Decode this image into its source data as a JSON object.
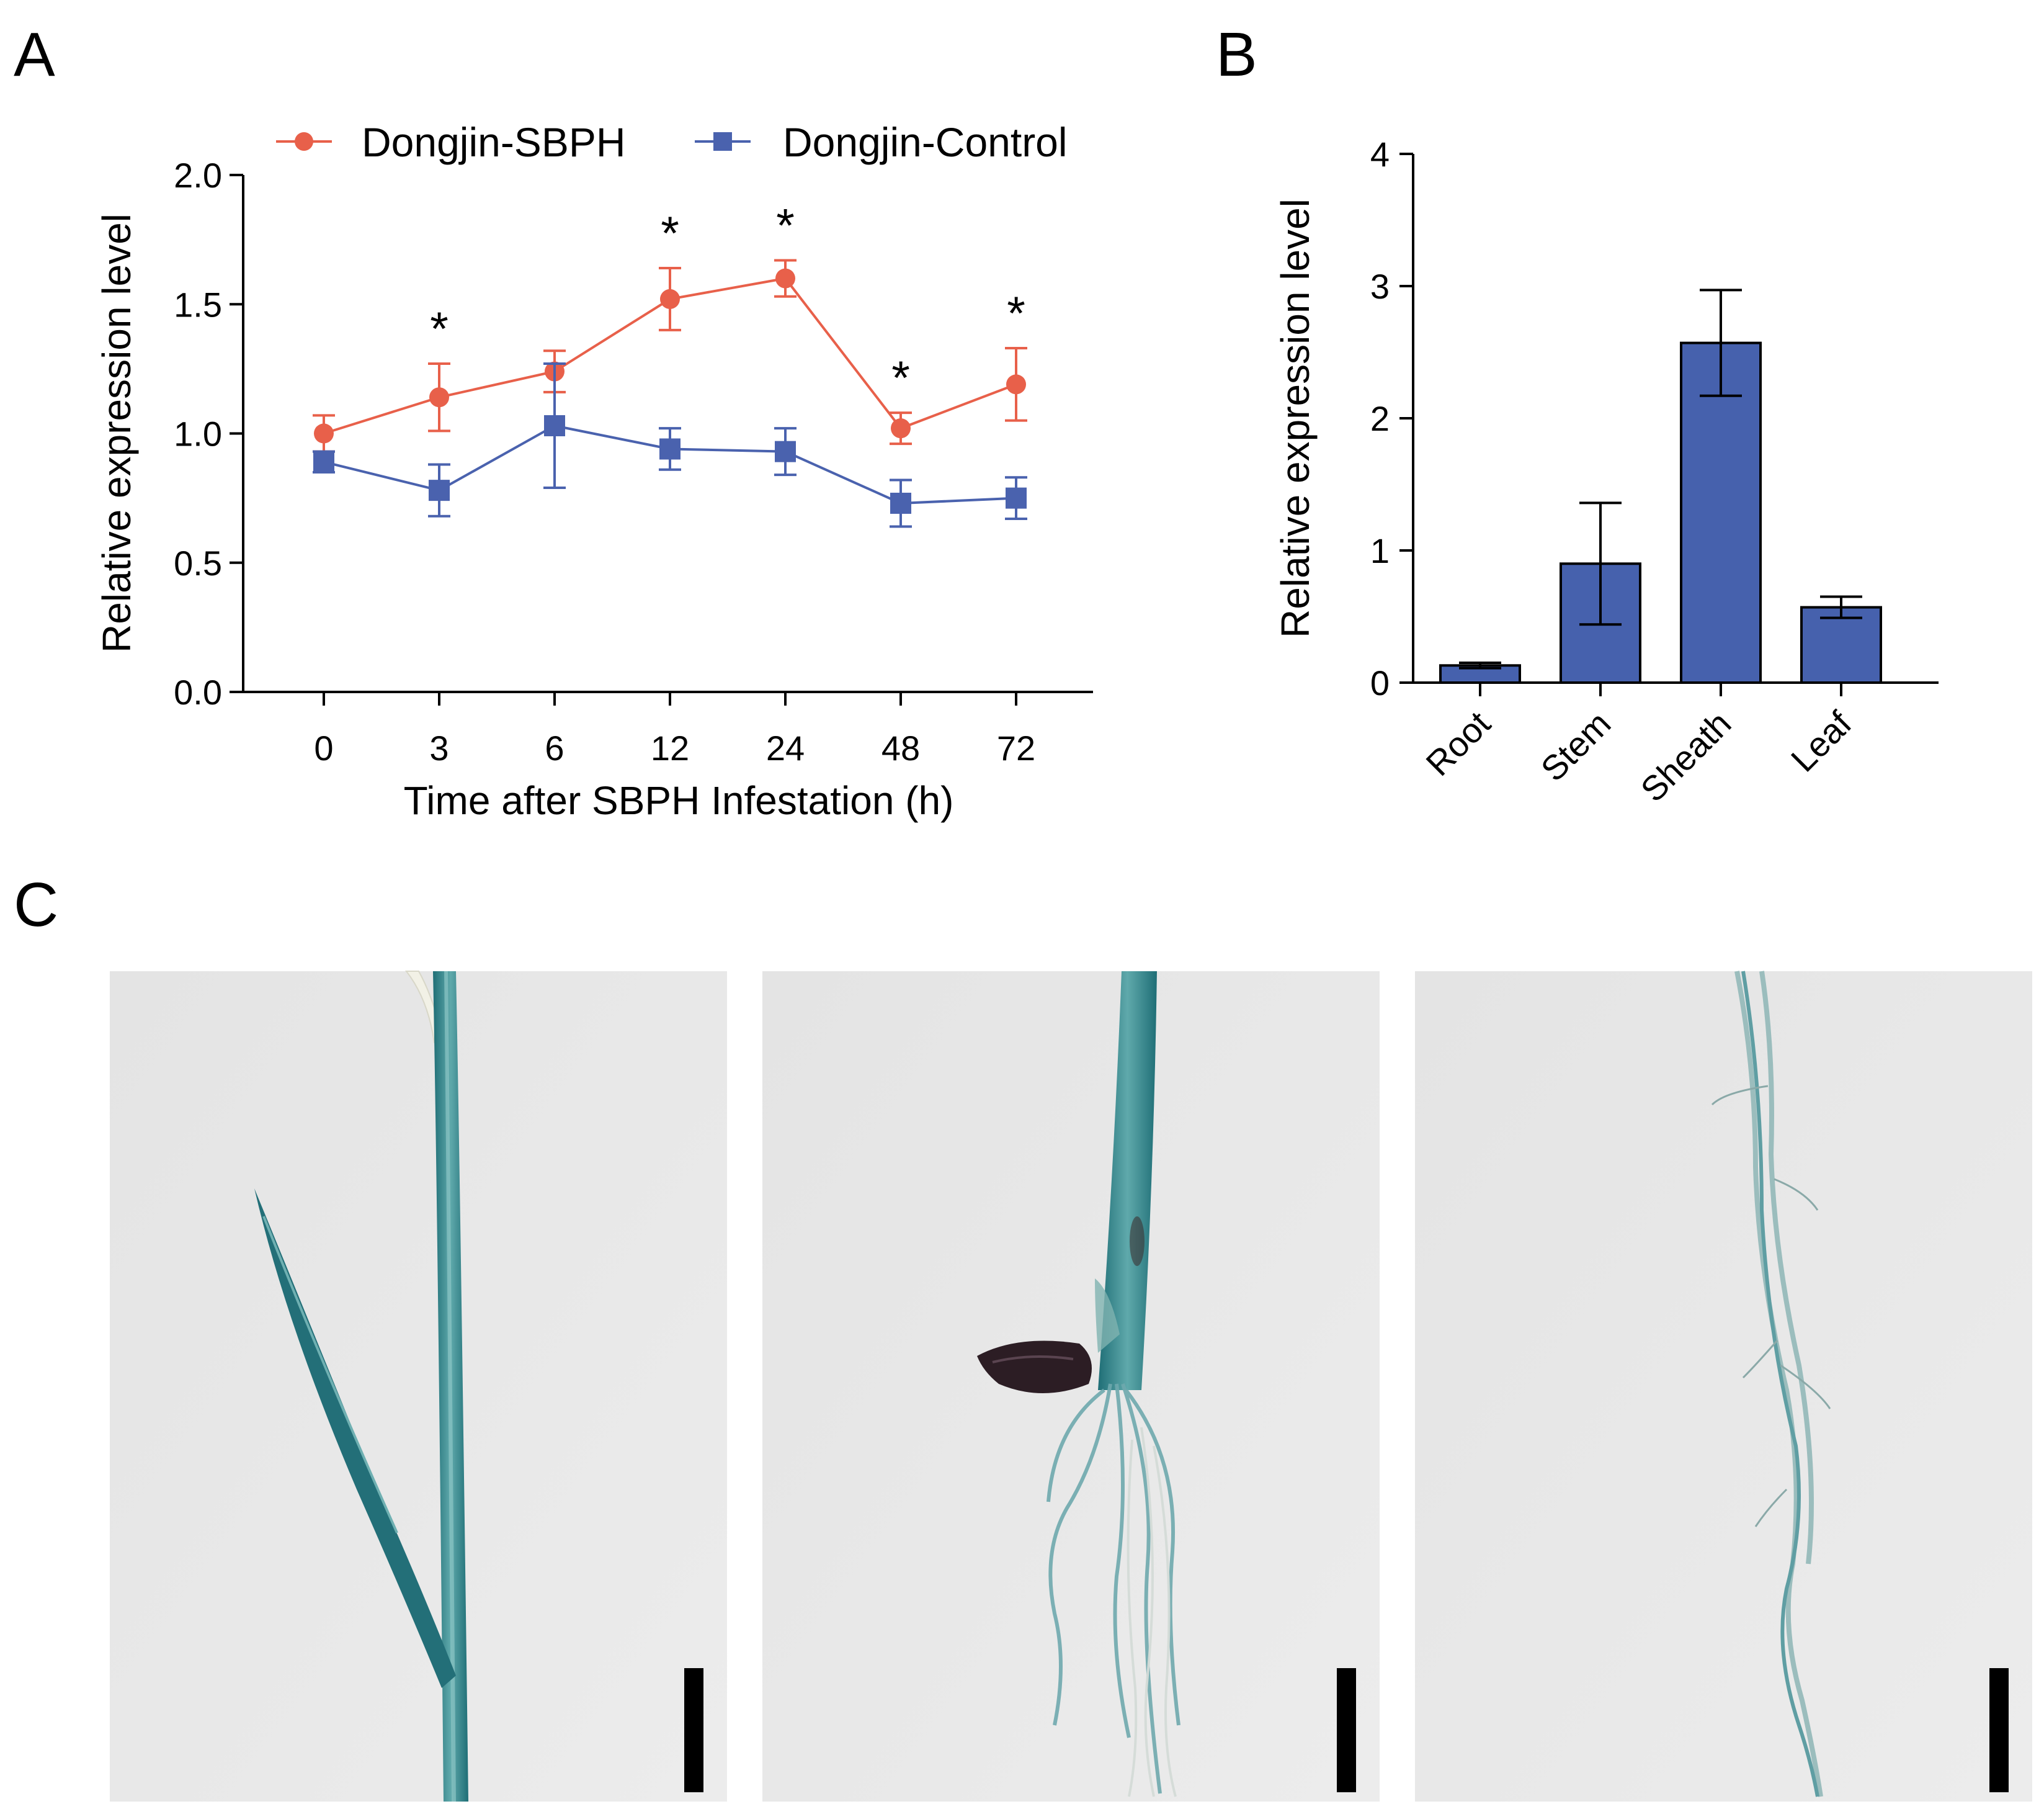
{
  "panel_labels": {
    "a": "A",
    "b": "B",
    "c": "C"
  },
  "colors": {
    "sbph": "#e8604a",
    "control": "#4a62ae",
    "bar_fill": "#4661ad",
    "axis": "#000000"
  },
  "chart_data": [
    {
      "type": "line",
      "panel": "A",
      "title": "",
      "xlabel": "Time after SBPH Infestation (h)",
      "ylabel": "Relative expression level",
      "categories": [
        "0",
        "3",
        "6",
        "12",
        "24",
        "48",
        "72"
      ],
      "ylim": [
        0,
        2.0
      ],
      "yticks": [
        "0.0",
        "0.5",
        "1.0",
        "1.5",
        "2.0"
      ],
      "legend_position": "top",
      "series": [
        {
          "name": "Dongjin-SBPH",
          "color": "#e8604a",
          "marker": "circle",
          "values": [
            1.0,
            1.14,
            1.24,
            1.52,
            1.6,
            1.02,
            1.19
          ],
          "errors": [
            0.07,
            0.13,
            0.08,
            0.12,
            0.07,
            0.06,
            0.14
          ]
        },
        {
          "name": "Dongjin-Control",
          "color": "#4a62ae",
          "marker": "square",
          "values": [
            0.89,
            0.78,
            1.03,
            0.94,
            0.93,
            0.73,
            0.75
          ],
          "errors": [
            0.04,
            0.1,
            0.24,
            0.08,
            0.09,
            0.09,
            0.08
          ]
        }
      ],
      "significance": [
        "",
        "*",
        "",
        "*",
        "*",
        "*",
        "*"
      ]
    },
    {
      "type": "bar",
      "panel": "B",
      "title": "",
      "xlabel": "",
      "ylabel": "Relative expression level",
      "categories": [
        "Root",
        "Stem",
        "Sheath",
        "Leaf"
      ],
      "values": [
        0.13,
        0.9,
        2.57,
        0.57
      ],
      "errors": [
        0.02,
        0.46,
        0.4,
        0.08
      ],
      "ylim": [
        0,
        4
      ],
      "yticks": [
        "0",
        "1",
        "2",
        "3",
        "4"
      ]
    }
  ],
  "photos": [
    {
      "name": "leaf"
    },
    {
      "name": "stem-seed-root"
    },
    {
      "name": "root"
    }
  ]
}
